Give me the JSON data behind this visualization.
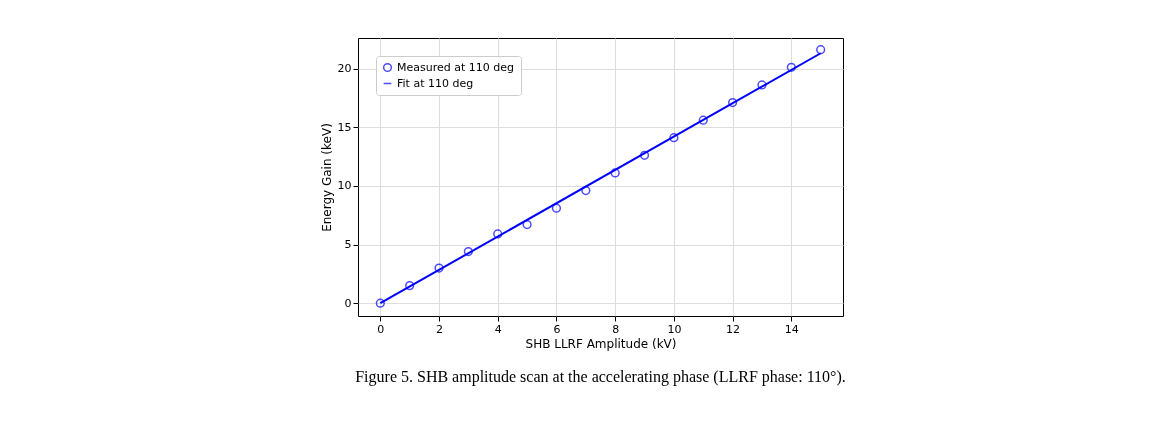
{
  "chart_data": {
    "type": "scatter",
    "xlabel": "SHB LLRF Amplitude (kV)",
    "ylabel": "Energy Gain (keV)",
    "x": [
      0,
      1,
      2,
      3,
      4,
      5,
      6,
      7,
      8,
      9,
      10,
      11,
      12,
      13,
      14,
      15
    ],
    "series": [
      {
        "name": "Measured at 110 deg",
        "marker": "circle",
        "color": "#0000ff",
        "values": [
          0,
          1.5,
          3.0,
          4.4,
          5.9,
          6.7,
          8.1,
          9.6,
          11.1,
          12.6,
          14.1,
          15.6,
          17.1,
          18.6,
          20.1,
          21.6
        ]
      },
      {
        "name": "Fit at 110 deg",
        "type": "line",
        "marker": "none",
        "line_style": "solid",
        "color": "#0000ff",
        "x": [
          0,
          15
        ],
        "values": [
          0,
          21.3
        ]
      }
    ],
    "xlim": [
      -0.76,
      15.76
    ],
    "xticks": [
      0,
      2,
      4,
      6,
      8,
      10,
      12,
      14
    ],
    "ylim": [
      -1.09,
      22.6
    ],
    "yticks": [
      0,
      5,
      10,
      15,
      20
    ],
    "grid": true,
    "legend": "top left",
    "annotations": [
      "Figure 5. SHB amplitude scan at the accelerating phase (LLRF phase: 110°)."
    ]
  }
}
